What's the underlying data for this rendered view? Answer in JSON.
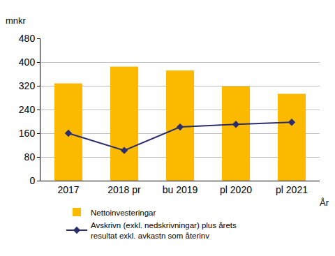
{
  "chart_data": {
    "type": "bar",
    "ylabel": "mnkr",
    "xlabel": "År",
    "categories": [
      "2017",
      "2018 pr",
      "bu 2019",
      "pl 2020",
      "pl 2021"
    ],
    "series": [
      {
        "name": "Nettoinvesteringar",
        "type": "bar",
        "color": "#FBBA00",
        "values": [
          328,
          385,
          372,
          318,
          293
        ]
      },
      {
        "name": "Avskrivn (exkl. nedskrivningar) plus årets resultat exkl. avkastn som återinv",
        "type": "line",
        "color": "#2B2E6E",
        "marker": "diamond",
        "values": [
          160,
          102,
          181,
          190,
          197
        ]
      }
    ],
    "ylim": [
      0,
      480
    ],
    "yticks": [
      0,
      80,
      160,
      240,
      320,
      400,
      480
    ],
    "grid": true
  }
}
